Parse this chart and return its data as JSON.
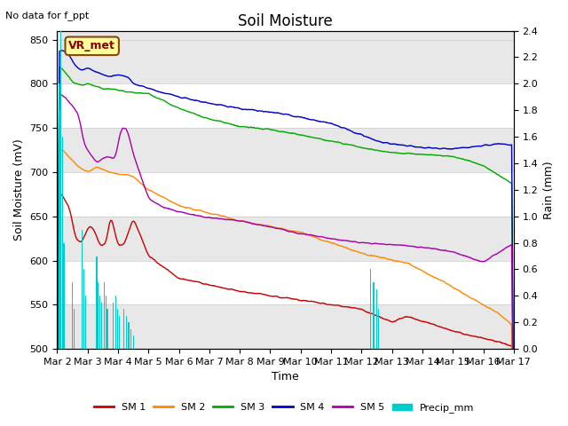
{
  "title": "Soil Moisture",
  "xlabel": "Time",
  "ylabel_left": "Soil Moisture (mV)",
  "ylabel_right": "Rain (mm)",
  "annotation_text": "No data for f_ppt",
  "vr_met_label": "VR_met",
  "ylim_left": [
    500,
    860
  ],
  "ylim_right": [
    0.0,
    2.4
  ],
  "yticks_left": [
    500,
    550,
    600,
    650,
    700,
    750,
    800,
    850
  ],
  "yticks_right": [
    0.0,
    0.2,
    0.4,
    0.6,
    0.8,
    1.0,
    1.2,
    1.4,
    1.6,
    1.8,
    2.0,
    2.2,
    2.4
  ],
  "x_labels": [
    "Mar 2",
    "Mar 3",
    "Mar 4",
    "Mar 5",
    "Mar 6",
    "Mar 7",
    "Mar 8",
    "Mar 9",
    "Mar 10",
    "Mar 11",
    "Mar 12",
    "Mar 13",
    "Mar 14",
    "Mar 15",
    "Mar 16",
    "Mar 17"
  ],
  "colors": {
    "SM1": "#cc0000",
    "SM2": "#ff8800",
    "SM3": "#00aa00",
    "SM4": "#0000cc",
    "SM5": "#aa00aa",
    "Precip": "#00cccc",
    "bg_band": "#e8e8e8"
  },
  "background_color": "#ffffff",
  "sm1_kp_x": [
    0,
    0.15,
    0.4,
    0.6,
    0.8,
    1.05,
    1.2,
    1.4,
    1.6,
    1.75,
    2.0,
    2.2,
    2.5,
    3.0,
    4.0,
    6.0,
    8.0,
    10.0,
    10.5,
    11.0,
    11.5,
    13.0,
    14.5,
    15.0
  ],
  "sm1_kp_y": [
    680,
    675,
    660,
    625,
    620,
    640,
    635,
    617,
    618,
    652,
    617,
    618,
    648,
    605,
    580,
    565,
    555,
    545,
    537,
    530,
    537,
    520,
    508,
    502
  ],
  "sm2_kp_x": [
    0,
    0.2,
    0.7,
    1.0,
    1.3,
    1.7,
    2.0,
    2.5,
    3.0,
    4.0,
    6.0,
    8.0,
    10.0,
    11.5,
    13.0,
    14.5,
    15.0
  ],
  "sm2_kp_y": [
    728,
    724,
    706,
    700,
    706,
    700,
    698,
    695,
    680,
    662,
    645,
    632,
    608,
    597,
    570,
    540,
    525
  ],
  "sm3_kp_x": [
    0,
    0.15,
    0.5,
    0.8,
    1.0,
    1.5,
    2.0,
    2.5,
    3.0,
    4.0,
    5.0,
    6.0,
    7.0,
    8.0,
    9.0,
    10.0,
    11.0,
    12.0,
    13.0,
    14.0,
    15.0
  ],
  "sm3_kp_y": [
    820,
    818,
    802,
    798,
    800,
    795,
    793,
    790,
    789,
    772,
    760,
    752,
    748,
    742,
    735,
    728,
    722,
    720,
    718,
    708,
    685
  ],
  "sm4_kp_x": [
    0,
    0.15,
    0.3,
    0.6,
    0.8,
    1.0,
    1.3,
    1.7,
    2.0,
    2.3,
    2.5,
    3.0,
    3.5,
    4.0,
    5.0,
    6.0,
    7.0,
    8.0,
    9.0,
    10.0,
    10.5,
    11.0,
    11.5,
    12.0,
    13.0,
    14.0,
    14.5,
    15.0
  ],
  "sm4_kp_y": [
    835,
    838,
    836,
    820,
    815,
    818,
    813,
    808,
    810,
    808,
    800,
    795,
    790,
    785,
    778,
    772,
    768,
    762,
    755,
    742,
    735,
    732,
    730,
    728,
    726,
    730,
    732,
    730
  ],
  "sm5_kp_x": [
    0,
    0.15,
    0.3,
    0.5,
    0.7,
    0.9,
    1.1,
    1.3,
    1.6,
    1.9,
    2.1,
    2.3,
    2.5,
    2.7,
    3.0,
    3.5,
    4.0,
    5.0,
    6.0,
    7.0,
    8.0,
    9.0,
    10.0,
    11.0,
    12.0,
    13.0,
    14.0,
    15.0
  ],
  "sm5_kp_y": [
    790,
    788,
    783,
    775,
    765,
    730,
    720,
    710,
    718,
    715,
    750,
    748,
    720,
    700,
    670,
    660,
    655,
    648,
    645,
    638,
    630,
    625,
    620,
    618,
    615,
    610,
    598,
    620
  ],
  "precip_times": [
    0.05,
    0.08,
    0.12,
    0.18,
    0.22,
    0.5,
    0.55,
    0.82,
    0.88,
    0.93,
    1.3,
    1.35,
    1.4,
    1.45,
    1.55,
    1.6,
    1.65,
    1.85,
    1.92,
    1.98,
    2.05,
    2.2,
    2.28,
    2.35,
    2.42,
    2.5,
    10.3,
    10.4,
    10.5,
    10.55
  ],
  "precip_heights": [
    2.0,
    1.8,
    2.4,
    1.6,
    0.8,
    0.5,
    0.3,
    0.9,
    0.6,
    0.4,
    0.7,
    0.5,
    0.4,
    0.35,
    0.5,
    0.4,
    0.3,
    0.35,
    0.4,
    0.3,
    0.25,
    0.3,
    0.25,
    0.2,
    0.15,
    0.1,
    0.6,
    0.5,
    0.45,
    0.3
  ]
}
